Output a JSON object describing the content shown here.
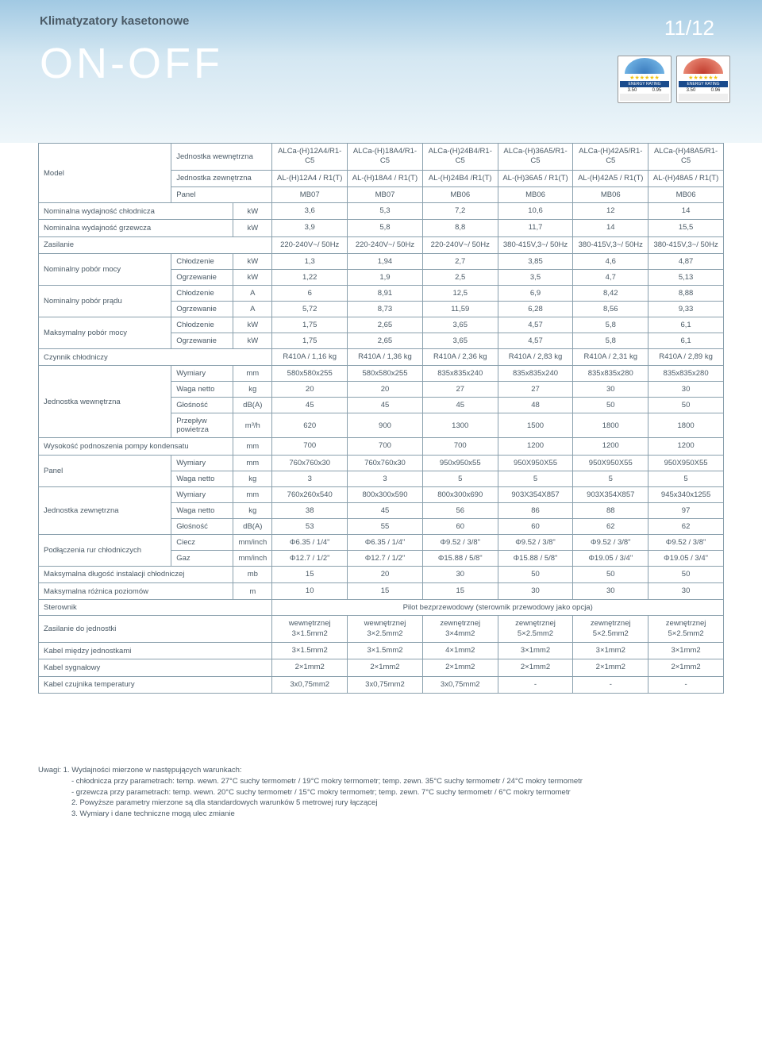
{
  "header": {
    "subtitle": "Klimatyzatory kasetonowe",
    "title": "ON-OFF",
    "pageNum": "11/12",
    "badges": [
      {
        "type": "cool",
        "label": "ENERGY RATING",
        "v1": "3.50",
        "v2": "0.95"
      },
      {
        "type": "heat",
        "label": "ENERGY RATING",
        "v1": "3.50",
        "v2": "0.96"
      }
    ]
  },
  "styling": {
    "header_gradient": [
      "#a1c9e3",
      "#d4e7f2",
      "#eef6fa"
    ],
    "text_color": "#4a5a66",
    "border_color": "#8aa0ad",
    "title_color": "#ffffff",
    "font_size_table": 9.5,
    "font_size_title": 54,
    "font_size_subtitle": 15
  },
  "models": {
    "row_indoor_label": "Jednostka wewnętrzna",
    "row_outdoor_label": "Jednostka zewnętrzna",
    "row_panel_label": "Panel",
    "label": "Model",
    "indoor": [
      "ALCa-(H)12A4/R1-C5",
      "ALCa-(H)18A4/R1-C5",
      "ALCa-(H)24B4/R1-C5",
      "ALCa-(H)36A5/R1-C5",
      "ALCa-(H)42A5/R1-C5",
      "ALCa-(H)48A5/R1-C5"
    ],
    "outdoor": [
      "AL-(H)12A4 / R1(T)",
      "AL-(H)18A4 / R1(T)",
      "AL-(H)24B4 /R1(T)",
      "AL-(H)36A5 / R1(T)",
      "AL-(H)42A5 / R1(T)",
      "AL-(H)48A5 / R1(T)"
    ],
    "panel": [
      "MB07",
      "MB07",
      "MB06",
      "MB06",
      "MB06",
      "MB06"
    ]
  },
  "rows": [
    {
      "l": "Nominalna wydajność chłodnicza",
      "s": "",
      "u": "kW",
      "v": [
        "3,6",
        "5,3",
        "7,2",
        "10,6",
        "12",
        "14"
      ]
    },
    {
      "l": "Nominalna wydajność grzewcza",
      "s": "",
      "u": "kW",
      "v": [
        "3,9",
        "5,8",
        "8,8",
        "11,7",
        "14",
        "15,5"
      ]
    },
    {
      "l": "Zasilanie",
      "s": "",
      "u": "",
      "v": [
        "220-240V~/ 50Hz",
        "220-240V~/ 50Hz",
        "220-240V~/ 50Hz",
        "380-415V,3~/ 50Hz",
        "380-415V,3~/ 50Hz",
        "380-415V,3~/ 50Hz"
      ]
    },
    {
      "l": "Nominalny pobór mocy",
      "sub": [
        {
          "s": "Chłodzenie",
          "u": "kW",
          "v": [
            "1,3",
            "1,94",
            "2,7",
            "3,85",
            "4,6",
            "4,87"
          ]
        },
        {
          "s": "Ogrzewanie",
          "u": "kW",
          "v": [
            "1,22",
            "1,9",
            "2,5",
            "3,5",
            "4,7",
            "5,13"
          ]
        }
      ]
    },
    {
      "l": "Nominalny pobór prądu",
      "sub": [
        {
          "s": "Chłodzenie",
          "u": "A",
          "v": [
            "6",
            "8,91",
            "12,5",
            "6,9",
            "8,42",
            "8,88"
          ]
        },
        {
          "s": "Ogrzewanie",
          "u": "A",
          "v": [
            "5,72",
            "8,73",
            "11,59",
            "6,28",
            "8,56",
            "9,33"
          ]
        }
      ]
    },
    {
      "l": "Maksymalny pobór mocy",
      "sub": [
        {
          "s": "Chłodzenie",
          "u": "kW",
          "v": [
            "1,75",
            "2,65",
            "3,65",
            "4,57",
            "5,8",
            "6,1"
          ]
        },
        {
          "s": "Ogrzewanie",
          "u": "kW",
          "v": [
            "1,75",
            "2,65",
            "3,65",
            "4,57",
            "5,8",
            "6,1"
          ]
        }
      ]
    },
    {
      "l": "Czynnik chłodniczy",
      "s": "",
      "u": "",
      "v": [
        "R410A / 1,16 kg",
        "R410A / 1,36 kg",
        "R410A / 2,36 kg",
        "R410A / 2,83 kg",
        "R410A / 2,31 kg",
        "R410A / 2,89 kg"
      ]
    },
    {
      "l": "Jednostka wewnętrzna",
      "sub": [
        {
          "s": "Wymiary",
          "u": "mm",
          "v": [
            "580x580x255",
            "580x580x255",
            "835x835x240",
            "835x835x240",
            "835x835x280",
            "835x835x280"
          ]
        },
        {
          "s": "Waga netto",
          "u": "kg",
          "v": [
            "20",
            "20",
            "27",
            "27",
            "30",
            "30"
          ]
        },
        {
          "s": "Głośność",
          "u": "dB(A)",
          "v": [
            "45",
            "45",
            "45",
            "48",
            "50",
            "50"
          ]
        },
        {
          "s": "Przepływ powietrza",
          "u": "m³/h",
          "v": [
            "620",
            "900",
            "1300",
            "1500",
            "1800",
            "1800"
          ]
        }
      ]
    },
    {
      "l": "Wysokość podnoszenia pompy kondensatu",
      "s": "",
      "u": "mm",
      "v": [
        "700",
        "700",
        "700",
        "1200",
        "1200",
        "1200"
      ]
    },
    {
      "l": "Panel",
      "sub": [
        {
          "s": "Wymiary",
          "u": "mm",
          "v": [
            "760x760x30",
            "760x760x30",
            "950x950x55",
            "950X950X55",
            "950X950X55",
            "950X950X55"
          ]
        },
        {
          "s": "Waga netto",
          "u": "kg",
          "v": [
            "3",
            "3",
            "5",
            "5",
            "5",
            "5"
          ]
        }
      ]
    },
    {
      "l": "Jednostka zewnętrzna",
      "sub": [
        {
          "s": "Wymiary",
          "u": "mm",
          "v": [
            "760x260x540",
            "800x300x590",
            "800x300x690",
            "903X354X857",
            "903X354X857",
            "945x340x1255"
          ]
        },
        {
          "s": "Waga netto",
          "u": "kg",
          "v": [
            "38",
            "45",
            "56",
            "86",
            "88",
            "97"
          ]
        },
        {
          "s": "Głośność",
          "u": "dB(A)",
          "v": [
            "53",
            "55",
            "60",
            "60",
            "62",
            "62"
          ]
        }
      ]
    },
    {
      "l": "Podłączenia rur chłodniczych",
      "sub": [
        {
          "s": "Ciecz",
          "u": "mm/inch",
          "v": [
            "Φ6.35 / 1/4\"",
            "Φ6.35 / 1/4\"",
            "Φ9.52 / 3/8\"",
            "Φ9.52 / 3/8\"",
            "Φ9.52 / 3/8\"",
            "Φ9.52 / 3/8\""
          ]
        },
        {
          "s": "Gaz",
          "u": "mm/inch",
          "v": [
            "Φ12.7 / 1/2\"",
            "Φ12.7 / 1/2\"",
            "Φ15.88 / 5/8\"",
            "Φ15.88 / 5/8\"",
            "Φ19.05 / 3/4\"",
            "Φ19.05 / 3/4\""
          ]
        }
      ]
    },
    {
      "l": "Maksymalna długość instalacji chłodniczej",
      "s": "",
      "u": "mb",
      "v": [
        "15",
        "20",
        "30",
        "50",
        "50",
        "50"
      ]
    },
    {
      "l": "Maksymalna różnica poziomów",
      "s": "",
      "u": "m",
      "v": [
        "10",
        "15",
        "15",
        "30",
        "30",
        "30"
      ]
    },
    {
      "l": "Sterownik",
      "span": "Pilot bezprzewodowy (sterownik przewodowy jako opcja)"
    },
    {
      "l": "Zasilanie do jednostki",
      "s": "",
      "u": "",
      "v": [
        "wewnętrznej 3×1.5mm2",
        "wewnętrznej 3×2.5mm2",
        "zewnętrznej 3×4mm2",
        "zewnętrznej 5×2.5mm2",
        "zewnętrznej 5×2.5mm2",
        "zewnętrznej 5×2.5mm2"
      ]
    },
    {
      "l": "Kabel między jednostkami",
      "s": "",
      "u": "",
      "v": [
        "3×1.5mm2",
        "3×1.5mm2",
        "4×1mm2",
        "3×1mm2",
        "3×1mm2",
        "3×1mm2"
      ]
    },
    {
      "l": "Kabel sygnałowy",
      "s": "",
      "u": "",
      "v": [
        "2×1mm2",
        "2×1mm2",
        "2×1mm2",
        "2×1mm2",
        "2×1mm2",
        "2×1mm2"
      ]
    },
    {
      "l": "Kabel czujnika temperatury",
      "s": "",
      "u": "",
      "v": [
        "3x0,75mm2",
        "3x0,75mm2",
        "3x0,75mm2",
        "-",
        "-",
        "-"
      ]
    }
  ],
  "notes": {
    "lead": "Uwagi: 1. Wydajności mierzone w następujących warunkach:",
    "lines": [
      "- chłodnicza przy parametrach: temp. wewn. 27°C suchy termometr / 19°C mokry termometr; temp. zewn. 35°C suchy termometr / 24°C mokry termometr",
      "- grzewcza przy parametrach: temp. wewn. 20°C suchy termometr / 15°C mokry termometr; temp. zewn. 7°C suchy termometr / 6°C mokry termometr",
      "2. Powyższe parametry mierzone są dla standardowych warunków 5 metrowej rury łączącej",
      "3. Wymiary i dane techniczne mogą ulec zmianie"
    ]
  }
}
